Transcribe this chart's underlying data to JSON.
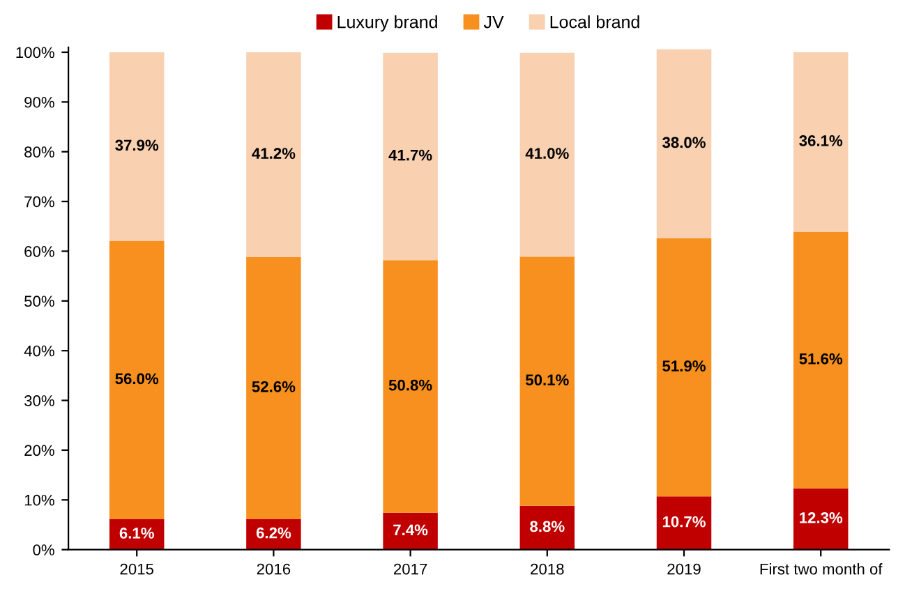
{
  "chart_data": {
    "type": "bar",
    "stacked": true,
    "categories": [
      "2015",
      "2016",
      "2017",
      "2018",
      "2019",
      "First two month of"
    ],
    "series": [
      {
        "name": "Luxury brand",
        "color": "#c00000",
        "values": [
          6.1,
          6.2,
          7.4,
          8.8,
          10.7,
          12.3
        ],
        "value_labels": [
          "6.1%",
          "6.2%",
          "7.4%",
          "8.8%",
          "10.7%",
          "12.3%"
        ]
      },
      {
        "name": "JV",
        "color": "#f7901e",
        "values": [
          56.0,
          52.6,
          50.8,
          50.1,
          51.9,
          51.6
        ],
        "value_labels": [
          "56.0%",
          "52.6%",
          "50.8%",
          "50.1%",
          "51.9%",
          "51.6%"
        ]
      },
      {
        "name": "Local brand",
        "color": "#f9d0b0",
        "values": [
          37.9,
          41.2,
          41.7,
          41.0,
          38.0,
          36.1
        ],
        "value_labels": [
          "37.9%",
          "41.2%",
          "41.7%",
          "41.0%",
          "38.0%",
          "36.1%"
        ]
      }
    ],
    "ylim": [
      0,
      101
    ],
    "yticks": [
      {
        "value": 0,
        "label": "0%"
      },
      {
        "value": 10,
        "label": "10%"
      },
      {
        "value": 20,
        "label": "20%"
      },
      {
        "value": 30,
        "label": "30%"
      },
      {
        "value": 40,
        "label": "40%"
      },
      {
        "value": 50,
        "label": "50%"
      },
      {
        "value": 60,
        "label": "60%"
      },
      {
        "value": 70,
        "label": "70%"
      },
      {
        "value": 80,
        "label": "80%"
      },
      {
        "value": 90,
        "label": "90%"
      },
      {
        "value": 100,
        "label": "100%"
      }
    ],
    "grid": false,
    "legend": "top"
  }
}
